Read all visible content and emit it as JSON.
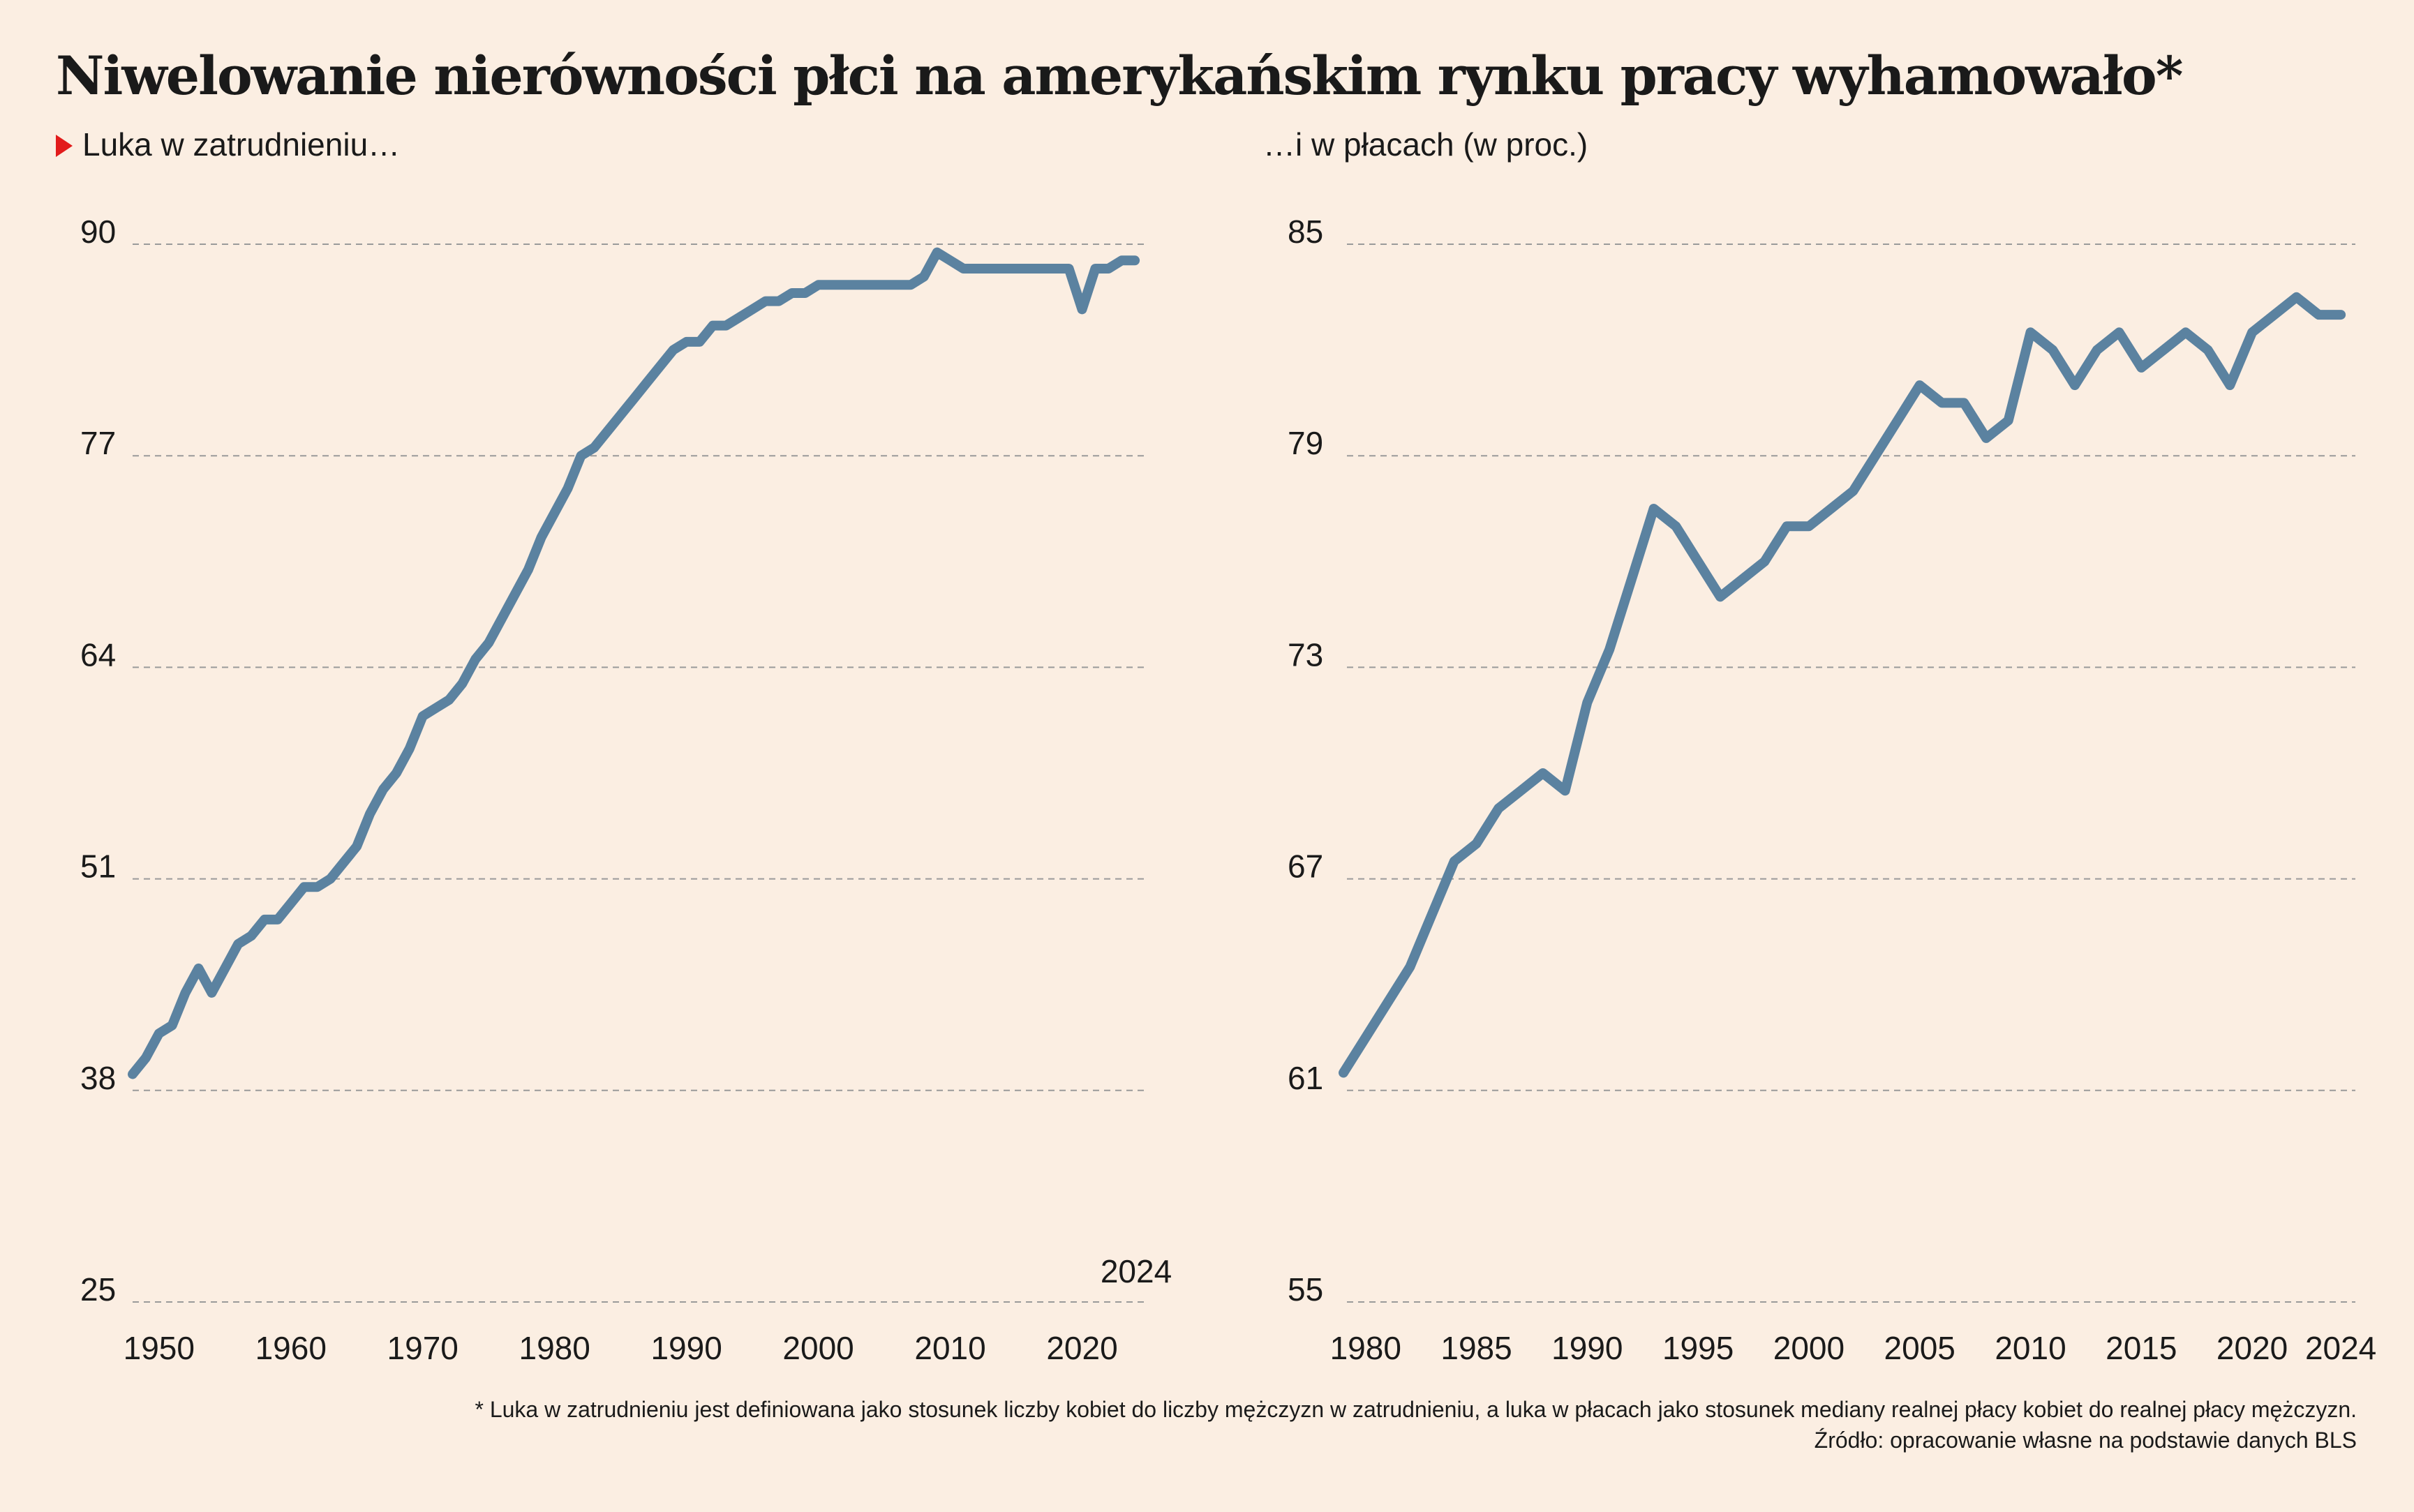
{
  "header": {
    "title": "Niwelowanie nierówności płci na amerykańskim rynku pracy wyhamowało*",
    "subtitle_left": "Luka w zatrudnieniu…",
    "subtitle_right": "…i w płacach (w proc.)"
  },
  "footer": {
    "note": "* Luka w zatrudnieniu jest definiowana jako stosunek liczby kobiet do liczby mężczyzn w zatrudnieniu, a luka w płacach jako stosunek mediany realnej płacy kobiet do realnej płacy mężczyzn.",
    "source": "Źródło: opracowanie własne na podstawie danych BLS"
  },
  "colors": {
    "background": "#fbeee2",
    "line": "#5b82a0",
    "grid": "#9a9a9a",
    "accent_marker": "#e21b1b"
  },
  "chart_data": [
    {
      "type": "line",
      "title": "Luka w zatrudnieniu…",
      "xlabel": "",
      "ylabel": "",
      "xlim": [
        1948,
        2025
      ],
      "ylim": [
        25,
        90
      ],
      "yticks": [
        25,
        38,
        51,
        64,
        77,
        90
      ],
      "xticks": [
        1950,
        1960,
        1970,
        1980,
        1990,
        2000,
        2010,
        2020
      ],
      "annotations": [
        {
          "text": "2024",
          "x": 2024,
          "y": 25
        }
      ],
      "grid": true,
      "series": [
        {
          "x": [
            1948,
            1949,
            1950,
            1951,
            1952,
            1953,
            1954,
            1955,
            1956,
            1957,
            1958,
            1959,
            1960,
            1961,
            1962,
            1963,
            1964,
            1965,
            1966,
            1967,
            1968,
            1969,
            1970,
            1971,
            1972,
            1973,
            1974,
            1975,
            1976,
            1977,
            1978,
            1979,
            1980,
            1981,
            1982,
            1983,
            1984,
            1985,
            1986,
            1987,
            1988,
            1989,
            1990,
            1991,
            1992,
            1993,
            1994,
            1995,
            1996,
            1997,
            1998,
            1999,
            2000,
            2001,
            2002,
            2003,
            2004,
            2005,
            2006,
            2007,
            2008,
            2009,
            2010,
            2011,
            2012,
            2013,
            2014,
            2015,
            2016,
            2017,
            2018,
            2019,
            2020,
            2021,
            2022,
            2023,
            2024
          ],
          "values": [
            39,
            40,
            41.5,
            42,
            44,
            45.5,
            44,
            45.5,
            47,
            47.5,
            48.5,
            48.5,
            49.5,
            50.5,
            50.5,
            51,
            52,
            53,
            55,
            56.5,
            57.5,
            59,
            61,
            61.5,
            62,
            63,
            64.5,
            65.5,
            67,
            68.5,
            70,
            72,
            73.5,
            75,
            77,
            77.5,
            78.5,
            79.5,
            80.5,
            81.5,
            82.5,
            83.5,
            84,
            84,
            85,
            85,
            85.5,
            86,
            86.5,
            86.5,
            87,
            87,
            87.5,
            87.5,
            87.5,
            87.5,
            87.5,
            87.5,
            87.5,
            87.5,
            88,
            89.5,
            89,
            88.5,
            88.5,
            88.5,
            88.5,
            88.5,
            88.5,
            88.5,
            88.5,
            88.5,
            86,
            88.5,
            88.5,
            89,
            89
          ]
        }
      ]
    },
    {
      "type": "line",
      "title": "…i w płacach (w proc.)",
      "xlabel": "",
      "ylabel": "",
      "xlim": [
        1979,
        2024.5
      ],
      "ylim": [
        55,
        85
      ],
      "yticks": [
        55,
        61,
        67,
        73,
        79,
        85
      ],
      "xticks": [
        1980,
        1985,
        1990,
        1995,
        2000,
        2005,
        2010,
        2015,
        2020,
        2024
      ],
      "grid": true,
      "series": [
        {
          "x": [
            1979,
            1980,
            1981,
            1982,
            1983,
            1984,
            1985,
            1986,
            1987,
            1988,
            1989,
            1990,
            1991,
            1992,
            1993,
            1994,
            1995,
            1996,
            1997,
            1998,
            1999,
            2000,
            2001,
            2002,
            2003,
            2004,
            2005,
            2006,
            2007,
            2008,
            2009,
            2010,
            2011,
            2012,
            2013,
            2014,
            2015,
            2016,
            2017,
            2018,
            2019,
            2020,
            2021,
            2022,
            2023,
            2024
          ],
          "values": [
            61.5,
            62.5,
            63.5,
            64.5,
            66,
            67.5,
            68,
            69,
            69.5,
            70,
            69.5,
            72,
            73.5,
            75.5,
            77.5,
            77,
            76,
            75,
            75.5,
            76,
            77,
            77,
            77.5,
            78,
            79,
            80,
            81,
            80.5,
            80.5,
            79.5,
            80,
            82.5,
            82,
            81,
            82,
            82.5,
            81.5,
            82,
            82.5,
            82,
            81,
            82.5,
            83,
            83.5,
            83,
            83
          ]
        }
      ]
    }
  ]
}
